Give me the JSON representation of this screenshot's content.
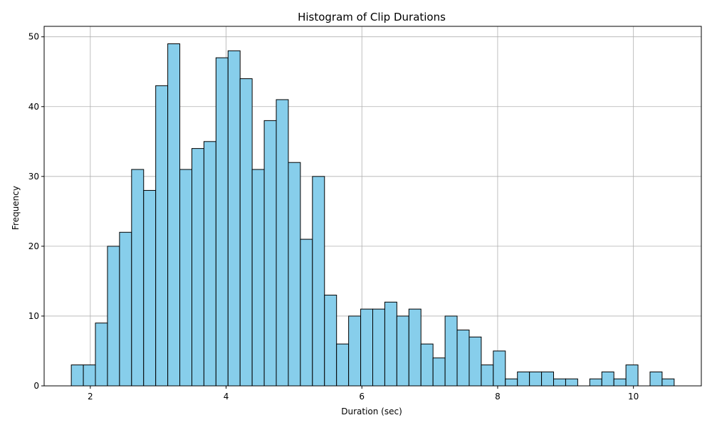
{
  "chart_data": {
    "type": "bar",
    "subtype": "histogram",
    "title": "Histogram of Clip Durations",
    "xlabel": "Duration (sec)",
    "ylabel": "Frequency",
    "xlim": [
      1.32,
      11.0
    ],
    "ylim": [
      0,
      51.5
    ],
    "xticks": [
      2,
      4,
      6,
      8,
      10
    ],
    "yticks": [
      0,
      10,
      20,
      30,
      40,
      50
    ],
    "xtick_labels": [
      "2",
      "4",
      "6",
      "8",
      "10"
    ],
    "ytick_labels": [
      "0",
      "10",
      "20",
      "30",
      "40",
      "50"
    ],
    "grid": true,
    "legend": "none",
    "bin_start": 1.72,
    "bin_width": 0.1776,
    "values": [
      3,
      3,
      9,
      20,
      22,
      31,
      28,
      43,
      49,
      31,
      34,
      35,
      47,
      48,
      44,
      31,
      38,
      41,
      32,
      21,
      30,
      13,
      6,
      10,
      11,
      11,
      12,
      10,
      11,
      6,
      4,
      10,
      8,
      7,
      3,
      5,
      1,
      2,
      2,
      2,
      1,
      1,
      0,
      1,
      2,
      1,
      3,
      0,
      2,
      1
    ],
    "colors": {
      "bar_fill": "#87ceeb",
      "bar_edge": "#000000",
      "grid": "#b0b0b0",
      "axes": "#000000"
    }
  }
}
